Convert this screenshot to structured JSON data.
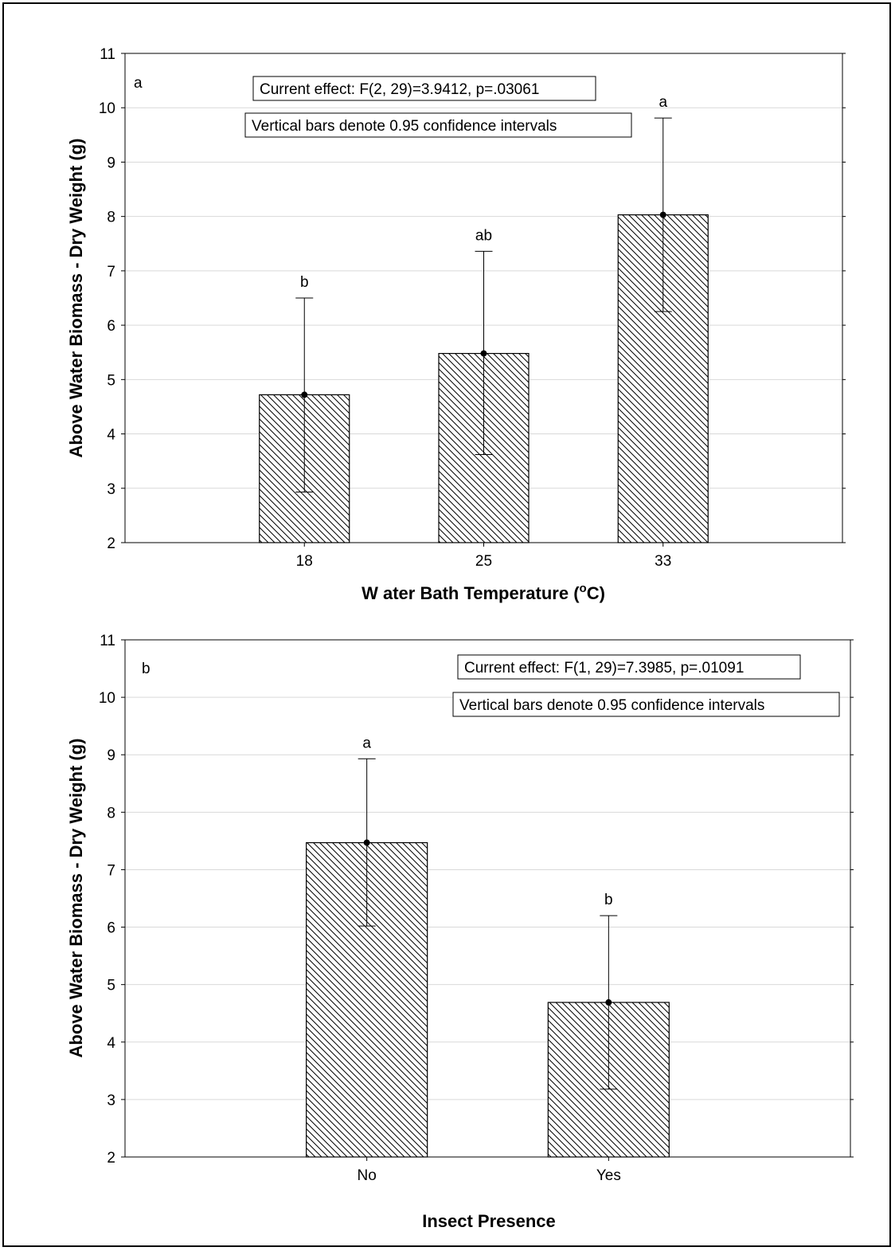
{
  "colors": {
    "axis": "#000000",
    "grid": "#d9d9d9",
    "bar_fill": "#ffffff",
    "hatch": "#000000"
  },
  "chart_data": [
    {
      "type": "bar",
      "panel_label": "a",
      "categories": [
        "18",
        "25",
        "33"
      ],
      "values": [
        4.72,
        5.48,
        8.03
      ],
      "ci_lower": [
        2.93,
        3.62,
        6.25
      ],
      "ci_upper": [
        6.5,
        7.36,
        9.81
      ],
      "significance_letters": [
        "b",
        "ab",
        "a"
      ],
      "annotations": [
        "Current effect: F(2, 29)=3.9412, p=.03061",
        "Vertical bars denote 0.95 confidence intervals"
      ],
      "xlabel": "W ater Bath Temperature (",
      "xlabel_sup": "o",
      "xlabel_suffix": "C)",
      "ylabel": "Above Water Biomass - Dry Weight (g)",
      "ylim": [
        2,
        11
      ],
      "yticks": [
        "2",
        "3",
        "4",
        "5",
        "6",
        "7",
        "8",
        "9",
        "10",
        "11"
      ],
      "grid": true
    },
    {
      "type": "bar",
      "panel_label": "b",
      "categories": [
        "No",
        "Yes"
      ],
      "values": [
        7.47,
        4.69
      ],
      "ci_lower": [
        6.02,
        3.18
      ],
      "ci_upper": [
        8.93,
        6.2
      ],
      "significance_letters": [
        "a",
        "b"
      ],
      "annotations": [
        "Current effect: F(1, 29)=7.3985, p=.01091",
        "Vertical bars denote 0.95 confidence intervals"
      ],
      "xlabel": "Insect Presence",
      "ylabel": "Above Water Biomass - Dry Weight (g)",
      "ylim": [
        2,
        11
      ],
      "yticks": [
        "2",
        "3",
        "4",
        "5",
        "6",
        "7",
        "8",
        "9",
        "10",
        "11"
      ],
      "grid": true
    }
  ]
}
